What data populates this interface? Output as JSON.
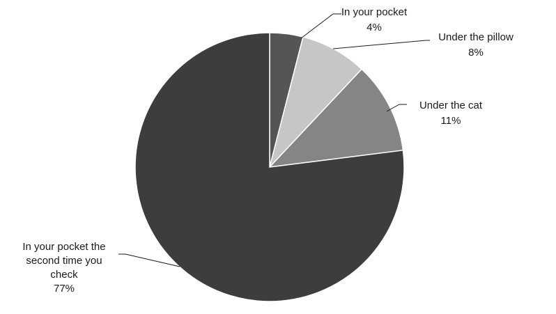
{
  "chart_data": {
    "type": "pie",
    "title": "",
    "start_angle_deg": 0,
    "direction": "clockwise",
    "slice_border": "#ffffff",
    "leader_color": "#1a1a1a",
    "slices": [
      {
        "label": "In your pocket",
        "label_lines": [
          "In your pocket"
        ],
        "value": 4,
        "value_label": "4%",
        "color": "#555555"
      },
      {
        "label": "Under the pillow",
        "label_lines": [
          "Under the pillow"
        ],
        "value": 8,
        "value_label": "8%",
        "color": "#c6c6c6"
      },
      {
        "label": "Under the cat",
        "label_lines": [
          "Under the cat"
        ],
        "value": 11,
        "value_label": "11%",
        "color": "#858585"
      },
      {
        "label": "In your pocket the second time you check",
        "label_lines": [
          "In your pocket the",
          "second time you",
          "check"
        ],
        "value": 77,
        "value_label": "77%",
        "color": "#3d3d3d"
      }
    ]
  }
}
